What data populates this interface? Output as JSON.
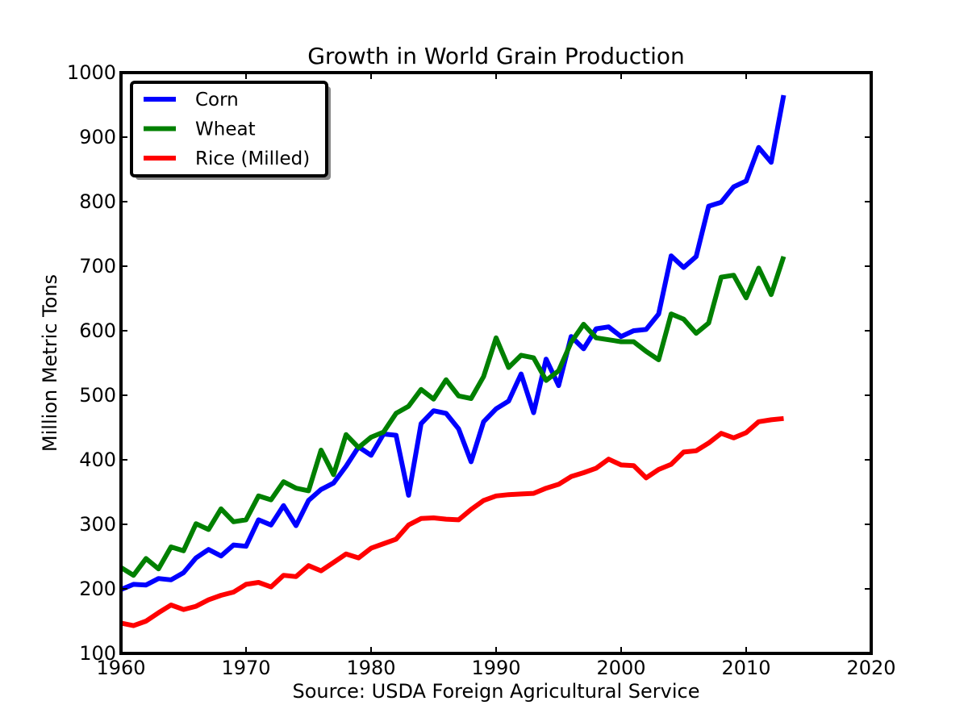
{
  "chart_data": {
    "type": "line",
    "title": "Growth in World Grain Production",
    "xlabel": "Source: USDA Foreign Agricultural Service",
    "ylabel": "Million Metric Tons",
    "xlim": [
      1960,
      2020
    ],
    "ylim": [
      100,
      1000
    ],
    "xticks": [
      1960,
      1970,
      1980,
      1990,
      2000,
      2010,
      2020
    ],
    "yticks": [
      100,
      200,
      300,
      400,
      500,
      600,
      700,
      800,
      900,
      1000
    ],
    "grid": false,
    "legend_position": "top-left",
    "x": [
      1960,
      1961,
      1962,
      1963,
      1964,
      1965,
      1966,
      1967,
      1968,
      1969,
      1970,
      1971,
      1972,
      1973,
      1974,
      1975,
      1976,
      1977,
      1978,
      1979,
      1980,
      1981,
      1982,
      1983,
      1984,
      1985,
      1986,
      1987,
      1988,
      1989,
      1990,
      1991,
      1992,
      1993,
      1994,
      1995,
      1996,
      1997,
      1998,
      1999,
      2000,
      2001,
      2002,
      2003,
      2004,
      2005,
      2006,
      2007,
      2008,
      2009,
      2010,
      2011,
      2012,
      2013
    ],
    "series": [
      {
        "name": "Corn",
        "color": "#0000ff",
        "values": [
          199,
          207,
          206,
          216,
          214,
          225,
          248,
          261,
          251,
          268,
          266,
          307,
          299,
          329,
          298,
          337,
          354,
          364,
          390,
          420,
          407,
          440,
          438,
          345,
          456,
          476,
          472,
          448,
          397,
          459,
          479,
          491,
          533,
          473,
          556,
          515,
          591,
          572,
          603,
          606,
          591,
          600,
          602,
          626,
          716,
          698,
          715,
          793,
          799,
          823,
          832,
          884,
          861,
          965
        ]
      },
      {
        "name": "Wheat",
        "color": "#008000",
        "values": [
          233,
          221,
          247,
          231,
          265,
          259,
          301,
          292,
          324,
          304,
          307,
          344,
          338,
          366,
          356,
          352,
          415,
          377,
          439,
          419,
          435,
          443,
          472,
          483,
          509,
          494,
          524,
          499,
          495,
          529,
          589,
          543,
          562,
          558,
          523,
          538,
          582,
          610,
          589,
          586,
          583,
          583,
          568,
          555,
          626,
          618,
          596,
          612,
          683,
          686,
          651,
          697,
          656,
          715
        ]
      },
      {
        "name": "Rice (Milled)",
        "color": "#ff0000",
        "values": [
          147,
          143,
          150,
          163,
          175,
          168,
          173,
          183,
          190,
          195,
          207,
          210,
          203,
          221,
          219,
          236,
          228,
          241,
          254,
          248,
          263,
          270,
          277,
          299,
          309,
          310,
          308,
          307,
          323,
          337,
          344,
          346,
          347,
          348,
          356,
          362,
          374,
          380,
          387,
          401,
          392,
          391,
          372,
          385,
          393,
          412,
          414,
          426,
          441,
          434,
          442,
          459,
          462,
          464
        ]
      }
    ]
  }
}
